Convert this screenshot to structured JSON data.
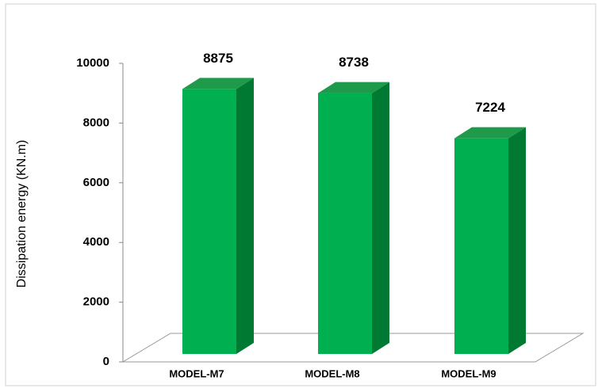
{
  "chart_data": {
    "type": "bar3d",
    "y_label": "Dissipation energy (KN.m)",
    "categories": [
      "MODEL-M7",
      "MODEL-M8",
      "MODEL-M9"
    ],
    "values": [
      8875,
      8738,
      7224
    ],
    "color": "#00b050",
    "ylim": [
      0,
      10000
    ],
    "yticks": [
      0,
      2000,
      4000,
      6000,
      8000,
      10000
    ],
    "grid": false
  }
}
